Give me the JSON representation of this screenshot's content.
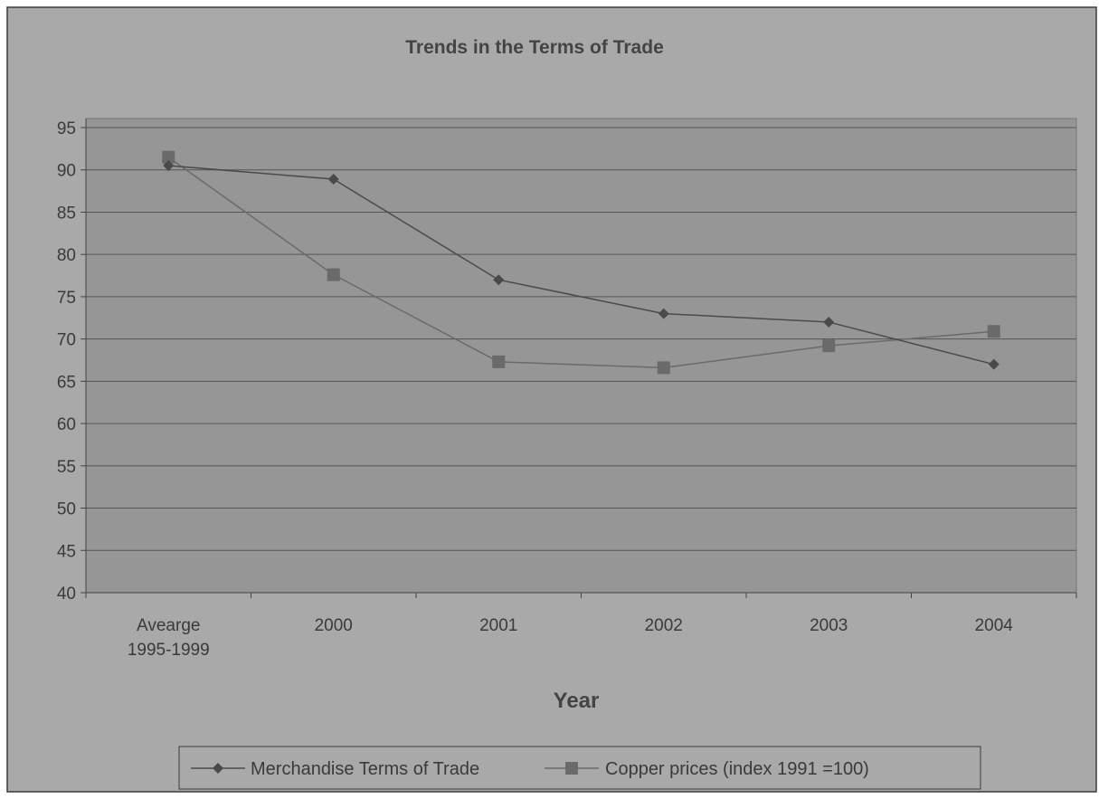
{
  "chart_data": {
    "type": "line",
    "title": "Trends in the Terms of Trade",
    "xlabel": "Year",
    "ylabel": "",
    "categories": [
      [
        "Avearge",
        "1995-1999"
      ],
      [
        "2000"
      ],
      [
        "2001"
      ],
      [
        "2002"
      ],
      [
        "2003"
      ],
      [
        "2004"
      ]
    ],
    "ylim": [
      40,
      95
    ],
    "yticks": [
      95,
      90,
      85,
      80,
      75,
      70,
      65,
      60,
      55,
      50,
      45,
      40
    ],
    "grid": true,
    "legend_position": "bottom",
    "series": [
      {
        "name": "Merchandise Terms of Trade",
        "marker": "diamond",
        "color": "#4a4a4a",
        "values": [
          90.5,
          88.9,
          77.0,
          73.0,
          72.0,
          67.0
        ]
      },
      {
        "name": "Copper prices (index 1991 =100)",
        "marker": "square",
        "color": "#6a6a6a",
        "values": [
          91.5,
          77.6,
          67.3,
          66.6,
          69.2,
          70.9
        ]
      }
    ],
    "colors": {
      "chart_background": "#a9a9a9",
      "plot_background": "#969696",
      "gridline": "#555555"
    }
  }
}
